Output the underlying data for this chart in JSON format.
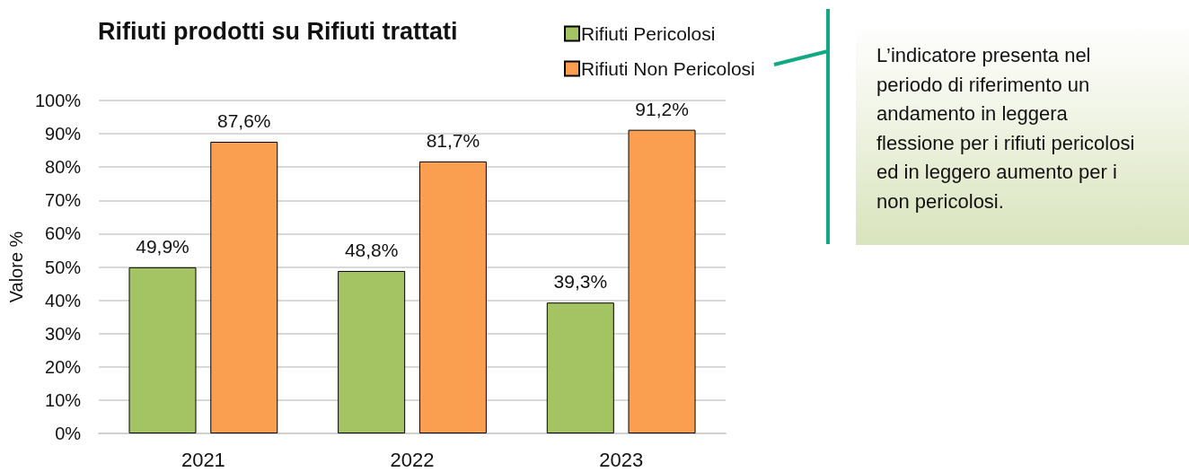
{
  "chart_data": {
    "type": "bar",
    "title": "Rifiuti prodotti su Rifiuti trattati",
    "ylabel": "Valore %",
    "categories": [
      "2021",
      "2022",
      "2023"
    ],
    "series": [
      {
        "name": "Rifiuti Pericolosi",
        "color": "#a4c463",
        "values": [
          49.9,
          48.8,
          39.3
        ],
        "value_labels": [
          "49,9%",
          "48,8%",
          "39,3%"
        ]
      },
      {
        "name": "Rifiuti Non Pericolosi",
        "color": "#f99f4f",
        "values": [
          87.6,
          81.7,
          91.2
        ],
        "value_labels": [
          "87,6%",
          "81,7%",
          "91,2%"
        ]
      }
    ],
    "ylim": [
      0,
      100
    ],
    "yticks": [
      {
        "value": 0,
        "label": "0%"
      },
      {
        "value": 10,
        "label": "10%"
      },
      {
        "value": 20,
        "label": "20%"
      },
      {
        "value": 30,
        "label": "30%"
      },
      {
        "value": 40,
        "label": "40%"
      },
      {
        "value": 50,
        "label": "50%"
      },
      {
        "value": 60,
        "label": "60%"
      },
      {
        "value": 70,
        "label": "70%"
      },
      {
        "value": 80,
        "label": "80%"
      },
      {
        "value": 90,
        "label": "90%"
      },
      {
        "value": 100,
        "label": "100%"
      }
    ],
    "grid": "y",
    "legend": "top right",
    "annotations": [
      "L’indicatore presenta nel periodo di riferimento un andamento in leggera flessione per i rifiuti pericolosi ed in leggero aumento per i non pericolosi."
    ]
  }
}
